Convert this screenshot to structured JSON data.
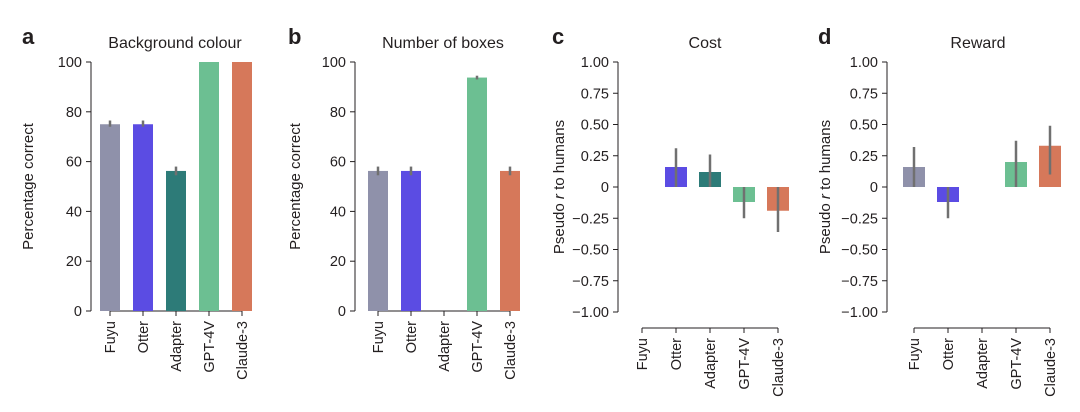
{
  "colors": {
    "Fuyu": "#8f91aa",
    "Otter": "#5b4ce3",
    "Adapter": "#2d7b78",
    "GPT-4V": "#6cbf92",
    "Claude-3": "#d6785a",
    "errorbar": "#707070",
    "axis": "#231f20"
  },
  "chart_data": [
    {
      "letter": "a",
      "type": "bar",
      "title": "Background colour",
      "ylabel": "Percentage correct",
      "ylim": [
        0,
        100
      ],
      "yticks": [
        0,
        20,
        40,
        60,
        80,
        100
      ],
      "ytick_labels": [
        "0",
        "20",
        "40",
        "60",
        "80",
        "100"
      ],
      "categories": [
        "Fuyu",
        "Otter",
        "Adapter",
        "GPT-4V",
        "Claude-3"
      ],
      "values": [
        75,
        75,
        56.25,
        100,
        100
      ],
      "errors": [
        [
          74,
          76.5
        ],
        [
          74,
          76.5
        ],
        [
          54.5,
          58
        ],
        [
          null,
          null
        ],
        [
          null,
          null
        ]
      ]
    },
    {
      "letter": "b",
      "type": "bar",
      "title": "Number of boxes",
      "ylabel": "Percentage correct",
      "ylim": [
        0,
        100
      ],
      "yticks": [
        0,
        20,
        40,
        60,
        80,
        100
      ],
      "ytick_labels": [
        "0",
        "20",
        "40",
        "60",
        "80",
        "100"
      ],
      "categories": [
        "Fuyu",
        "Otter",
        "Adapter",
        "GPT-4V",
        "Claude-3"
      ],
      "values": [
        56.25,
        56.25,
        null,
        93.75,
        56.25
      ],
      "errors": [
        [
          54.5,
          58
        ],
        [
          54.5,
          58
        ],
        [
          null,
          null
        ],
        [
          93,
          94.5
        ],
        [
          54.5,
          58
        ]
      ]
    },
    {
      "letter": "c",
      "type": "bar",
      "title": "Cost",
      "ylabel_prefix": "Pseudo ",
      "ylabel_italic": "r",
      "ylabel_suffix": " to humans",
      "ylim": [
        -1,
        1
      ],
      "yticks": [
        -1,
        -0.75,
        -0.5,
        -0.25,
        0,
        0.25,
        0.5,
        0.75,
        1
      ],
      "ytick_labels": [
        "−1.00",
        "−0.75",
        "−0.50",
        "−0.25",
        "0",
        "0.25",
        "0.50",
        "0.75",
        "1.00"
      ],
      "categories": [
        "Fuyu",
        "Otter",
        "Adapter",
        "GPT-4V",
        "Claude-3"
      ],
      "values": [
        null,
        0.16,
        0.12,
        -0.12,
        -0.19
      ],
      "errors": [
        [
          null,
          null
        ],
        [
          0.0,
          0.31
        ],
        [
          0.0,
          0.26
        ],
        [
          -0.25,
          0.0
        ],
        [
          -0.36,
          0.0
        ]
      ]
    },
    {
      "letter": "d",
      "type": "bar",
      "title": "Reward",
      "ylabel_prefix": "Pseudo ",
      "ylabel_italic": "r",
      "ylabel_suffix": " to humans",
      "ylim": [
        -1,
        1
      ],
      "yticks": [
        -1,
        -0.75,
        -0.5,
        -0.25,
        0,
        0.25,
        0.5,
        0.75,
        1
      ],
      "ytick_labels": [
        "−1.00",
        "−0.75",
        "−0.50",
        "−0.25",
        "0",
        "0.25",
        "0.50",
        "0.75",
        "1.00"
      ],
      "categories": [
        "Fuyu",
        "Otter",
        "Adapter",
        "GPT-4V",
        "Claude-3"
      ],
      "values": [
        0.16,
        -0.12,
        null,
        0.2,
        0.33
      ],
      "errors": [
        [
          0.0,
          0.32
        ],
        [
          -0.25,
          0.0
        ],
        [
          null,
          null
        ],
        [
          0.0,
          0.37
        ],
        [
          0.1,
          0.49
        ]
      ]
    }
  ]
}
